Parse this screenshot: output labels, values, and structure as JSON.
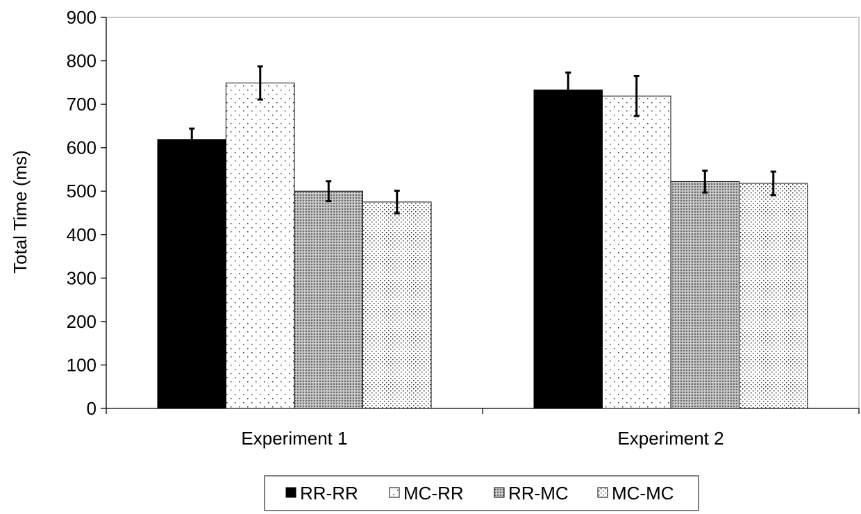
{
  "chart_data": {
    "type": "bar",
    "title": "",
    "xlabel": "",
    "ylabel": "Total Time (ms)",
    "ylim": [
      0,
      900
    ],
    "yticks": [
      0,
      100,
      200,
      300,
      400,
      500,
      600,
      700,
      800,
      900
    ],
    "categories": [
      "Experiment 1",
      "Experiment 2"
    ],
    "series": [
      {
        "name": "RR-RR",
        "values": [
          619,
          733
        ],
        "error": [
          25,
          40
        ],
        "pattern": "solid-black"
      },
      {
        "name": "MC-RR",
        "values": [
          749,
          719
        ],
        "error": [
          38,
          46
        ],
        "pattern": "sparse-dots"
      },
      {
        "name": "RR-MC",
        "values": [
          500,
          522
        ],
        "error": [
          23,
          25
        ],
        "pattern": "dense-dots"
      },
      {
        "name": "MC-MC",
        "values": [
          475,
          518
        ],
        "error": [
          26,
          27
        ],
        "pattern": "medium-dots"
      }
    ],
    "grid": false,
    "error_bars": true,
    "legend_position": "bottom-center"
  }
}
